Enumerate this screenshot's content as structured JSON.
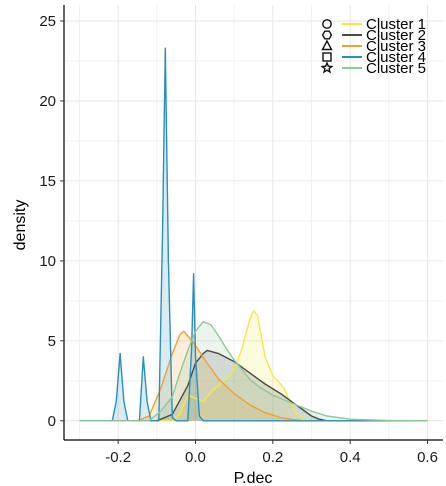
{
  "chart_data": {
    "type": "area",
    "xlabel": "P.dec",
    "ylabel": "density",
    "xlim": [
      -0.34,
      0.64
    ],
    "ylim": [
      -1.2,
      26
    ],
    "x_ticks": [
      -0.2,
      0.0,
      0.2,
      0.4,
      0.6
    ],
    "x_tick_labels": [
      "-0.2",
      "0.0",
      "0.2",
      "0.4",
      "0.6"
    ],
    "y_ticks": [
      0,
      5,
      10,
      15,
      20,
      25
    ],
    "y_tick_labels": [
      "0",
      "5",
      "10",
      "15",
      "20",
      "25"
    ],
    "grid": true,
    "legend_position": "top-right",
    "series": [
      {
        "name": "Cluster 1",
        "color": "#f2e84a",
        "marker": "circle",
        "x": [
          -0.06,
          -0.04,
          -0.02,
          0.0,
          0.02,
          0.04,
          0.06,
          0.08,
          0.1,
          0.12,
          0.14,
          0.15,
          0.16,
          0.18,
          0.2,
          0.22,
          0.23,
          0.24,
          0.26,
          0.28,
          0.3
        ],
        "y": [
          0,
          0.4,
          1.6,
          1.4,
          1.2,
          1.8,
          2.2,
          2.6,
          3.2,
          4.5,
          6.3,
          6.9,
          6.6,
          4.0,
          2.8,
          2.3,
          2.0,
          1.4,
          0.4,
          0.1,
          0
        ]
      },
      {
        "name": "Cluster 2",
        "color": "#4a4a4a",
        "marker": "hexagon",
        "x": [
          -0.1,
          -0.06,
          -0.02,
          0.0,
          0.02,
          0.03,
          0.06,
          0.1,
          0.14,
          0.18,
          0.22,
          0.26,
          0.3,
          0.32,
          0.34
        ],
        "y": [
          0,
          0.4,
          2.2,
          3.6,
          4.2,
          4.4,
          4.2,
          3.7,
          3.0,
          2.3,
          1.7,
          1.0,
          0.3,
          0.1,
          0
        ]
      },
      {
        "name": "Cluster 3",
        "color": "#f0a030",
        "marker": "triangle",
        "x": [
          -0.15,
          -0.12,
          -0.09,
          -0.06,
          -0.04,
          -0.03,
          -0.02,
          0.0,
          0.03,
          0.06,
          0.1,
          0.14,
          0.18,
          0.22,
          0.26,
          0.28
        ],
        "y": [
          0,
          0.3,
          2.0,
          4.2,
          5.4,
          5.6,
          5.3,
          4.7,
          3.6,
          2.6,
          1.7,
          1.0,
          0.5,
          0.2,
          0.05,
          0
        ]
      },
      {
        "name": "Cluster 4",
        "color": "#2a8fbf",
        "marker": "square",
        "x": [
          -0.215,
          -0.205,
          -0.195,
          -0.185,
          -0.175,
          -0.145,
          -0.135,
          -0.125,
          -0.115,
          -0.095,
          -0.085,
          -0.078,
          -0.07,
          -0.06,
          -0.05,
          -0.02,
          -0.01,
          -0.005,
          0.0,
          0.01,
          0.02
        ],
        "y": [
          0,
          1.2,
          4.2,
          1.2,
          0,
          0,
          4.0,
          1.2,
          0,
          0,
          12.0,
          23.3,
          10.0,
          0.2,
          0,
          0,
          4.5,
          9.2,
          4.0,
          0.3,
          0
        ]
      },
      {
        "name": "Cluster 5",
        "color": "#8fc89a",
        "marker": "star",
        "x": [
          -0.12,
          -0.09,
          -0.06,
          -0.04,
          -0.02,
          0.0,
          0.02,
          0.04,
          0.06,
          0.08,
          0.1,
          0.12,
          0.14,
          0.16,
          0.18,
          0.2,
          0.22,
          0.24,
          0.26,
          0.3,
          0.34,
          0.4,
          0.5,
          0.6
        ],
        "y": [
          0,
          0.6,
          1.5,
          3.0,
          4.4,
          5.6,
          6.2,
          6.0,
          5.3,
          4.5,
          3.8,
          3.2,
          2.6,
          2.2,
          1.9,
          1.6,
          1.4,
          1.2,
          1.0,
          0.6,
          0.3,
          0.1,
          0.02,
          0
        ]
      }
    ]
  }
}
